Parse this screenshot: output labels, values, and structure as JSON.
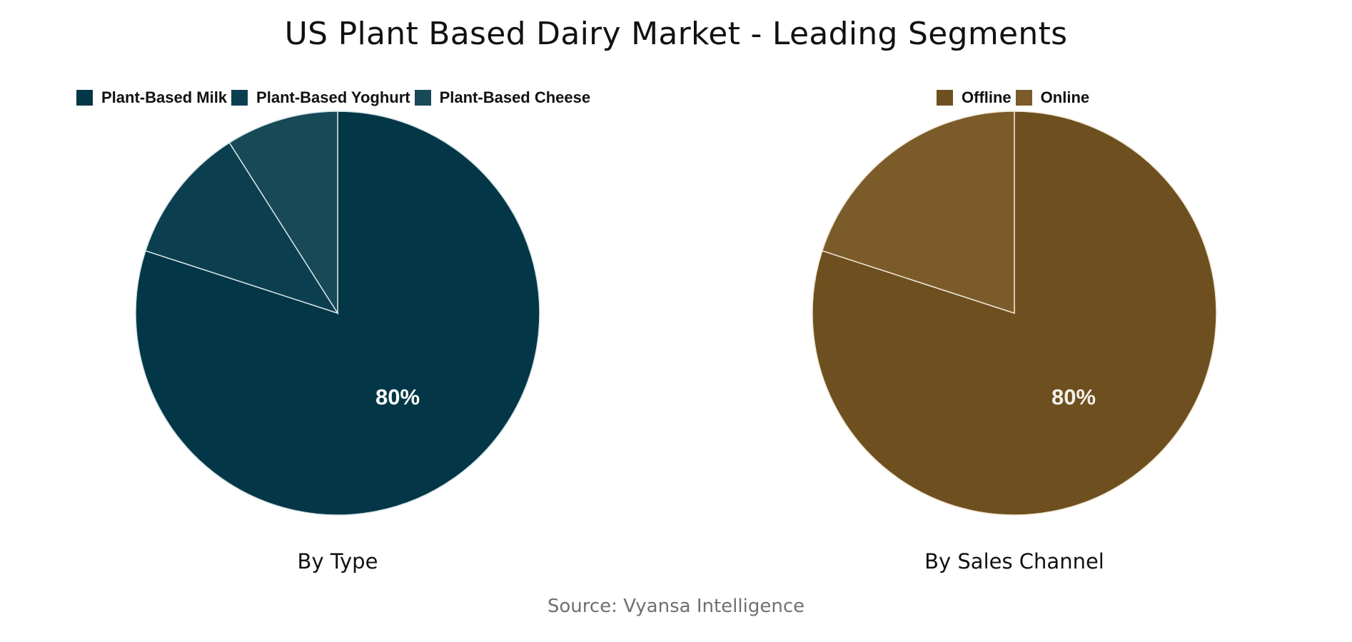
{
  "title": "US Plant Based Dairy Market - Leading Segments",
  "source": "Source: Vyansa Intelligence",
  "charts": {
    "type": {
      "subtitle": "By Type",
      "legend": [
        {
          "label": "Plant-Based Milk",
          "color": "#033646"
        },
        {
          "label": "Plant-Based Yoghurt",
          "color": "#0B3F4F"
        },
        {
          "label": "Plant-Based Cheese",
          "color": "#174957"
        }
      ],
      "label": "80%"
    },
    "channel": {
      "subtitle": "By Sales Channel",
      "legend": [
        {
          "label": "Offline",
          "color": "#6E4F1F"
        },
        {
          "label": "Online",
          "color": "#7B5B2A"
        }
      ],
      "label": "80%"
    }
  },
  "chart_data": [
    {
      "type": "pie",
      "title": "By Type",
      "categories": [
        "Plant-Based Milk",
        "Plant-Based Yoghurt",
        "Plant-Based Cheese"
      ],
      "values": [
        80,
        11,
        9
      ],
      "colors": [
        "#033646",
        "#0B3F4F",
        "#174957"
      ],
      "data_labels": [
        "80%",
        "",
        ""
      ],
      "legend_position": "top"
    },
    {
      "type": "pie",
      "title": "By Sales Channel",
      "categories": [
        "Offline",
        "Online"
      ],
      "values": [
        80,
        20
      ],
      "colors": [
        "#6E4F1F",
        "#7B5B2A"
      ],
      "data_labels": [
        "80%",
        ""
      ],
      "legend_position": "top"
    }
  ]
}
